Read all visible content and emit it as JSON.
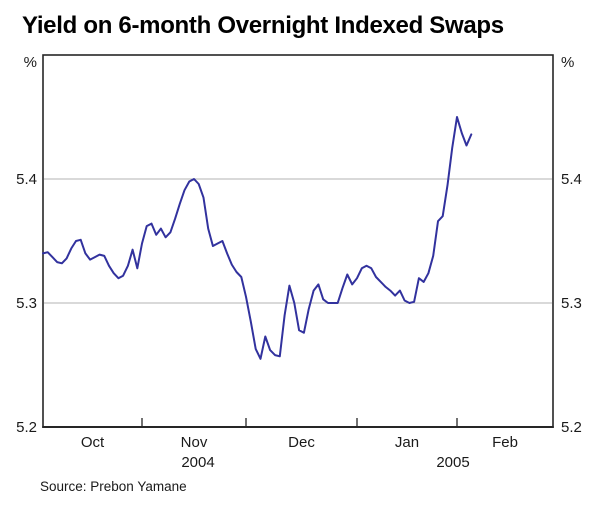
{
  "page": {
    "title": "Yield on 6-month Overnight Indexed Swaps",
    "source": "Source: Prebon Yamane"
  },
  "chart_data": {
    "type": "line",
    "title": "Yield on 6-month Overnight Indexed Swaps",
    "source": "Source: Prebon Yamane",
    "unit_label": "%",
    "ylim": [
      5.2,
      5.5
    ],
    "ytick_labels": [
      "5.2",
      "5.3",
      "5.4"
    ],
    "yticks": [
      5.2,
      5.3,
      5.4
    ],
    "gridlines": [
      5.3,
      5.4
    ],
    "axis_labels_both_sides": true,
    "legend": "none",
    "x_axis": {
      "months": [
        {
          "label": "Oct",
          "values": [
            5.34,
            5.341,
            5.337,
            5.333,
            5.332,
            5.336,
            5.344,
            5.35,
            5.351,
            5.34,
            5.335,
            5.337,
            5.339,
            5.338,
            5.33,
            5.324,
            5.32,
            5.322,
            5.33,
            5.343,
            5.328
          ]
        },
        {
          "label": "Nov",
          "values": [
            5.348,
            5.362,
            5.364,
            5.355,
            5.36,
            5.353,
            5.357,
            5.368,
            5.38,
            5.391,
            5.398,
            5.4,
            5.396,
            5.385,
            5.36,
            5.346,
            5.348,
            5.35,
            5.34,
            5.331,
            5.325,
            5.321
          ]
        },
        {
          "label": "Dec",
          "values": [
            5.305,
            5.285,
            5.263,
            5.255,
            5.273,
            5.262,
            5.258,
            5.257,
            5.29,
            5.314,
            5.3,
            5.278,
            5.276,
            5.295,
            5.31,
            5.315,
            5.303,
            5.3,
            5.3,
            5.3,
            5.312,
            5.323,
            5.315
          ]
        },
        {
          "label": "Jan",
          "values": [
            5.32,
            5.328,
            5.33,
            5.328,
            5.321,
            5.317,
            5.313,
            5.31,
            5.306,
            5.31,
            5.302,
            5.3,
            5.301,
            5.32,
            5.317,
            5.324,
            5.338,
            5.366,
            5.37,
            5.395,
            5.425
          ]
        },
        {
          "label": "Feb",
          "partial": true,
          "values": [
            5.45,
            5.437,
            5.427,
            5.436
          ]
        }
      ],
      "year_labels": [
        {
          "text": "2004",
          "month_span": [
            0,
            2
          ]
        },
        {
          "text": "2005",
          "month_span": [
            3,
            4
          ]
        }
      ]
    },
    "series": [
      {
        "name": "Yield on 6-month overnight indexed swaps",
        "color": "#32329e"
      }
    ],
    "colors": {
      "line": "#32329e",
      "gridline": "#b3b3b3",
      "frame": "#262626",
      "text": "#1a1a1a",
      "background": "#ffffff"
    }
  }
}
